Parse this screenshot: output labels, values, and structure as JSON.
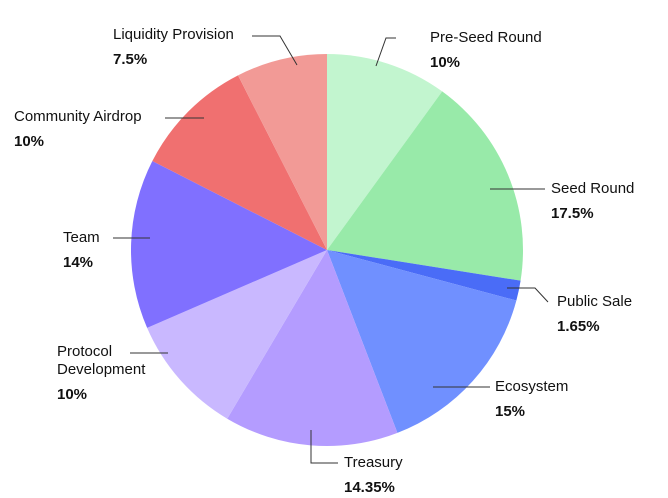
{
  "chart_data": {
    "type": "pie",
    "categories": [
      "Pre-Seed Round",
      "Seed Round",
      "Public Sale",
      "Ecosystem",
      "Treasury",
      "Protocol Development",
      "Team",
      "Community Airdrop",
      "Liquidity Provision"
    ],
    "values": [
      10,
      17.5,
      1.65,
      15,
      14.35,
      10,
      14,
      10,
      7.5
    ],
    "value_labels": [
      "10%",
      "17.5%",
      "1.65%",
      "15%",
      "14.35%",
      "10%",
      "14%",
      "10%",
      "7.5%"
    ],
    "colors": [
      "#c2f5cf",
      "#98eaa9",
      "#4a6cf7",
      "#7090ff",
      "#b49cff",
      "#c9b8ff",
      "#8070ff",
      "#f07070",
      "#f29a96"
    ]
  }
}
